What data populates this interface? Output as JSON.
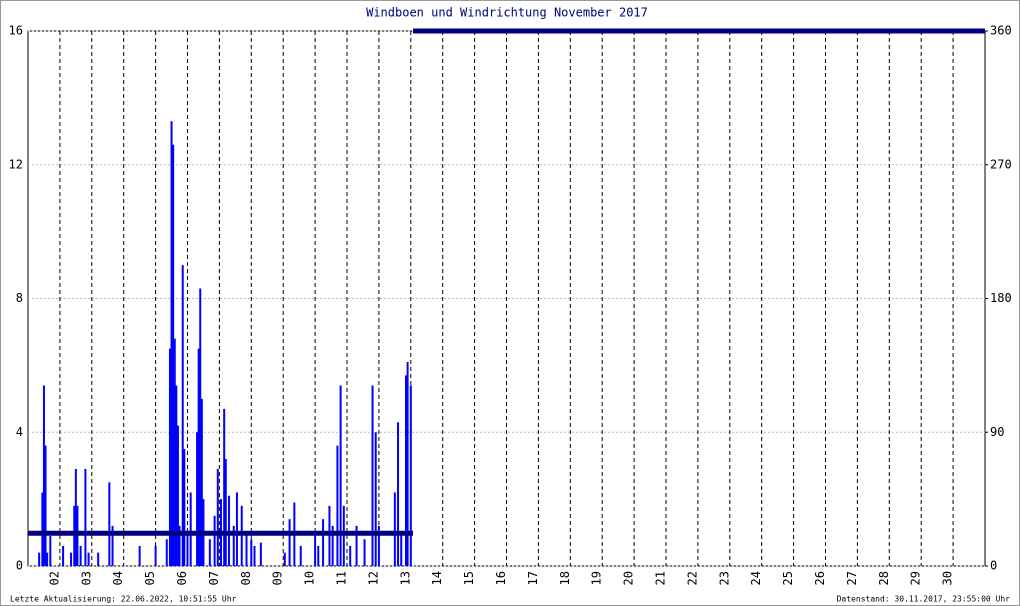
{
  "chart_data": {
    "type": "bar",
    "title": "Windboen und Windrichtung November 2017",
    "footer_left": "Letzte Aktualisierung: 22.06.2022, 10:51:55 Uhr",
    "footer_right": "Datenstand: 30.11.2017, 23:55:00 Uhr",
    "xlim": [
      1,
      31
    ],
    "xticks": [
      {
        "value": 2,
        "label": "02"
      },
      {
        "value": 3,
        "label": "03"
      },
      {
        "value": 4,
        "label": "04"
      },
      {
        "value": 5,
        "label": "05"
      },
      {
        "value": 6,
        "label": "06"
      },
      {
        "value": 7,
        "label": "07"
      },
      {
        "value": 8,
        "label": "08"
      },
      {
        "value": 9,
        "label": "09"
      },
      {
        "value": 10,
        "label": "10"
      },
      {
        "value": 11,
        "label": "11"
      },
      {
        "value": 12,
        "label": "12"
      },
      {
        "value": 13,
        "label": "13"
      },
      {
        "value": 14,
        "label": "14"
      },
      {
        "value": 15,
        "label": "15"
      },
      {
        "value": 16,
        "label": "16"
      },
      {
        "value": 17,
        "label": "17"
      },
      {
        "value": 18,
        "label": "18"
      },
      {
        "value": 19,
        "label": "19"
      },
      {
        "value": 20,
        "label": "20"
      },
      {
        "value": 21,
        "label": "21"
      },
      {
        "value": 22,
        "label": "22"
      },
      {
        "value": 23,
        "label": "23"
      },
      {
        "value": 24,
        "label": "24"
      },
      {
        "value": 25,
        "label": "25"
      },
      {
        "value": 26,
        "label": "26"
      },
      {
        "value": 27,
        "label": "27"
      },
      {
        "value": 28,
        "label": "28"
      },
      {
        "value": 29,
        "label": "29"
      },
      {
        "value": 30,
        "label": "30"
      }
    ],
    "ylim": [
      0,
      16
    ],
    "yticks": [
      0,
      4,
      8,
      12,
      16
    ],
    "y2lim": [
      0,
      360
    ],
    "y2ticks": [
      0,
      90,
      180,
      270,
      360
    ],
    "grid": true,
    "series": [
      {
        "type": "bar",
        "color": "#0000ff",
        "x": [
          1.35,
          1.45,
          1.5,
          1.55,
          1.6,
          1.7,
          2.1,
          2.35,
          2.45,
          2.5,
          2.55,
          2.65,
          2.8,
          2.9,
          3.2,
          3.55,
          3.65,
          4.5,
          5.0,
          5.35,
          5.45,
          5.5,
          5.55,
          5.6,
          5.65,
          5.7,
          5.75,
          5.85,
          5.9,
          6.0,
          6.1,
          6.3,
          6.35,
          6.4,
          6.45,
          6.5,
          6.7,
          6.85,
          6.95,
          7.05,
          7.15,
          7.2,
          7.3,
          7.45,
          7.55,
          7.7,
          7.85,
          8.0,
          8.1,
          8.3,
          9.05,
          9.2,
          9.35,
          9.55,
          10.0,
          10.1,
          10.25,
          10.45,
          10.55,
          10.7,
          10.8,
          10.9,
          11.1,
          11.3,
          11.55,
          11.8,
          11.9,
          12.0,
          12.5,
          12.6,
          12.7,
          12.85,
          12.9,
          13.0
        ],
        "values": [
          0.4,
          2.2,
          5.4,
          3.6,
          0.4,
          0.9,
          0.6,
          0.4,
          1.8,
          2.9,
          1.8,
          0.6,
          2.9,
          0.4,
          0.4,
          2.5,
          1.2,
          0.6,
          0.6,
          0.8,
          6.5,
          13.3,
          12.6,
          6.8,
          5.4,
          4.2,
          1.2,
          9.0,
          3.5,
          1.0,
          2.2,
          4.0,
          6.5,
          8.3,
          5.0,
          2.0,
          0.8,
          1.5,
          2.9,
          2.0,
          4.7,
          3.2,
          2.1,
          1.2,
          2.2,
          1.8,
          1.0,
          0.8,
          0.6,
          0.7,
          0.4,
          1.4,
          1.9,
          0.6,
          1.0,
          0.6,
          1.4,
          1.8,
          1.2,
          3.6,
          5.4,
          1.8,
          0.6,
          1.2,
          0.8,
          5.4,
          4.0,
          1.2,
          2.2,
          4.3,
          1.0,
          5.7,
          6.1,
          5.4
        ]
      },
      {
        "type": "line",
        "axis": "y2",
        "color": "#000080",
        "x": [
          1,
          13.07,
          13.07,
          13.07,
          31
        ],
        "values": [
          22,
          22,
          null,
          360,
          360
        ]
      }
    ]
  }
}
